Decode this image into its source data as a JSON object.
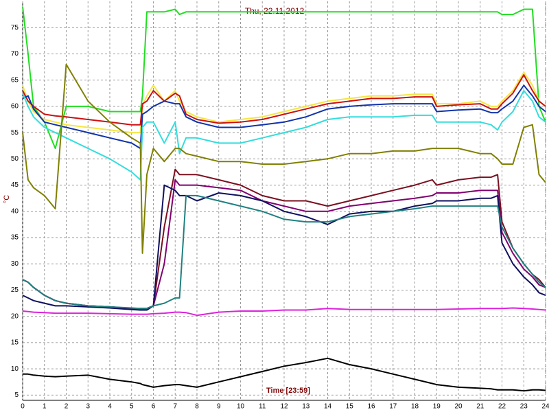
{
  "chart_data": {
    "type": "line",
    "title": "Thu, 22.11.2012",
    "y_label": "°C",
    "annotation": "Time [23:59]",
    "grid": true,
    "xlim": [
      0,
      24
    ],
    "xticks": [
      0,
      1,
      2,
      3,
      4,
      5,
      6,
      7,
      8,
      9,
      10,
      11,
      12,
      13,
      14,
      15,
      16,
      17,
      18,
      19,
      20,
      21,
      22,
      23,
      24
    ],
    "ylim": [
      4,
      80
    ],
    "yticks": [
      5,
      10,
      15,
      20,
      25,
      30,
      35,
      40,
      45,
      50,
      55,
      60,
      65,
      70,
      75
    ],
    "x": [
      0,
      0.25,
      0.5,
      1,
      1.5,
      2,
      3,
      4,
      5,
      5.4,
      5.5,
      5.7,
      6,
      6.5,
      7,
      7.2,
      7.5,
      8,
      9,
      10,
      11,
      12,
      13,
      14,
      15,
      16,
      17,
      18,
      18.8,
      19,
      20,
      21,
      21.5,
      21.8,
      22,
      22.5,
      23,
      23.4,
      23.7,
      24
    ],
    "series": [
      {
        "color": "#22dd22",
        "values": [
          79,
          70,
          60,
          57,
          52,
          60,
          60,
          59,
          59,
          59,
          62,
          78,
          78,
          78,
          78.5,
          77.5,
          78,
          78,
          78,
          78,
          78,
          78,
          78,
          78,
          78,
          78,
          78,
          78,
          78,
          78,
          78,
          78,
          78,
          78,
          77.5,
          77.5,
          78.5,
          78.5,
          60,
          57
        ]
      },
      {
        "color": "#f5e642",
        "values": [
          64,
          61,
          59,
          57.5,
          57,
          56.5,
          56,
          55.5,
          55,
          55,
          60,
          62,
          64,
          61,
          63,
          61,
          59,
          58,
          57,
          57.5,
          58,
          59,
          60,
          61,
          61.5,
          62,
          62,
          62.3,
          62.3,
          60.5,
          60.5,
          61,
          60,
          60,
          61,
          63,
          66.5,
          64,
          61,
          60
        ]
      },
      {
        "color": "#cc1111",
        "values": [
          63,
          61,
          60,
          58.5,
          58.2,
          58,
          57.5,
          57,
          56.5,
          56.5,
          60.5,
          61,
          63,
          61,
          62.5,
          62,
          58.5,
          57.5,
          56.8,
          57,
          57.5,
          58.5,
          59.5,
          60.5,
          61,
          61.5,
          61.5,
          61.8,
          61.8,
          60,
          60.3,
          60.5,
          59.5,
          59.5,
          60.5,
          62.5,
          66,
          63,
          61,
          60
        ]
      },
      {
        "color": "#1133aa",
        "values": [
          61.5,
          62,
          59.5,
          57,
          56.5,
          56,
          55,
          54,
          53,
          52,
          58.5,
          59,
          60,
          61,
          60.5,
          60.5,
          58,
          57,
          56,
          56,
          56.5,
          57,
          58,
          59.5,
          60,
          60.3,
          60.5,
          60.5,
          60.5,
          59,
          59.3,
          59.5,
          58.8,
          58.8,
          59.5,
          61,
          64,
          62,
          60,
          59
        ]
      },
      {
        "color": "#33dddd",
        "values": [
          62.5,
          60,
          58,
          56,
          55,
          54,
          52,
          50,
          47.5,
          46,
          56,
          57,
          57,
          53,
          57,
          51,
          54,
          54,
          53,
          53,
          54,
          55,
          56,
          57.5,
          58,
          58,
          58,
          58.3,
          58.3,
          57,
          57,
          57,
          56.5,
          55.5,
          57,
          59,
          63,
          61,
          58,
          57
        ]
      },
      {
        "color": "#808000",
        "values": [
          55,
          46,
          44.5,
          43,
          40.5,
          68,
          61,
          57,
          54,
          53,
          32,
          47,
          52,
          49.5,
          52,
          52,
          51,
          50.5,
          49.5,
          49.5,
          49,
          49,
          49.5,
          50,
          51,
          51,
          51.5,
          51.5,
          52,
          52,
          52,
          51,
          51,
          50,
          49,
          49,
          56,
          56.5,
          47,
          45.5
        ]
      },
      {
        "color": "#7a1020",
        "values": [
          27,
          26.5,
          25.5,
          24,
          23,
          22.5,
          22,
          21.8,
          21.5,
          21.5,
          21.5,
          21.5,
          22,
          37,
          48,
          47,
          47,
          47,
          46,
          45,
          43,
          42,
          42,
          41,
          42,
          43,
          44,
          45,
          46,
          45,
          46,
          46.5,
          46.5,
          47,
          38,
          33,
          30,
          28,
          27,
          25.5
        ]
      },
      {
        "color": "#800070",
        "values": [
          27,
          26.5,
          25.5,
          24,
          23,
          22.5,
          22,
          21.8,
          21.5,
          21.5,
          21.5,
          21.5,
          22,
          30,
          46,
          45,
          45,
          45,
          44.5,
          44,
          42,
          41,
          40,
          40,
          41,
          41.5,
          42,
          42.5,
          43,
          43.5,
          43.5,
          44,
          44,
          44,
          36,
          32,
          29,
          27.5,
          26,
          25.5
        ]
      },
      {
        "color": "#101060",
        "values": [
          24,
          23.5,
          23,
          22.5,
          22,
          22,
          21.8,
          21.6,
          21.3,
          21.2,
          21.2,
          21.2,
          22,
          45,
          44,
          43,
          43,
          42,
          43.5,
          43,
          42,
          40,
          39,
          37.5,
          39.5,
          40,
          40,
          41,
          41.5,
          42,
          42,
          42.5,
          42.5,
          43,
          34,
          30,
          27.5,
          26,
          24.5,
          24
        ]
      },
      {
        "color": "#208080",
        "values": [
          27,
          26.5,
          25.5,
          24,
          23,
          22.5,
          22,
          21.8,
          21.6,
          21.5,
          21.5,
          21.5,
          22,
          22.5,
          23.5,
          23.5,
          43,
          43,
          42,
          41,
          40,
          38.5,
          38,
          38,
          39,
          39.5,
          40,
          40.5,
          41,
          41,
          41,
          41,
          41,
          41,
          37,
          33,
          30,
          28,
          26.5,
          25.5
        ]
      },
      {
        "color": "#dd22dd",
        "values": [
          21,
          20.9,
          20.8,
          20.7,
          20.6,
          20.6,
          20.6,
          20.5,
          20.4,
          20.4,
          20.4,
          20.4,
          20.5,
          20.6,
          20.8,
          20.8,
          20.7,
          20.2,
          20.8,
          21,
          21,
          21.2,
          21.2,
          21.5,
          21.3,
          21.3,
          21.3,
          21.3,
          21.3,
          21.3,
          21.4,
          21.5,
          21.5,
          21.5,
          21.5,
          21.6,
          21.5,
          21.4,
          21.3,
          21.2
        ]
      },
      {
        "color": "#000000",
        "values": [
          9,
          9,
          8.8,
          8.6,
          8.5,
          8.6,
          8.8,
          8,
          7.5,
          7.2,
          7,
          6.8,
          6.5,
          6.8,
          7,
          7,
          6.8,
          6.5,
          7.5,
          8.5,
          9.5,
          10.5,
          11.2,
          12,
          10.8,
          10,
          9,
          8,
          7.2,
          7,
          6.5,
          6.3,
          6.2,
          6,
          6,
          6,
          5.8,
          6,
          6,
          5.9
        ]
      }
    ]
  }
}
